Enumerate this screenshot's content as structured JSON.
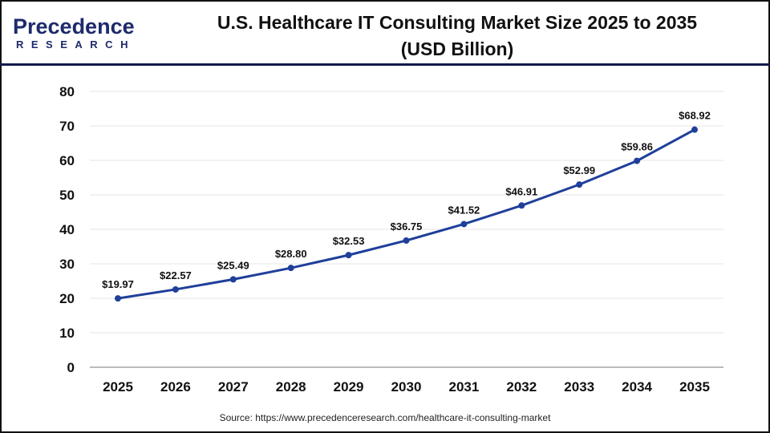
{
  "logo": {
    "line1": "Precedence",
    "line2": "RESEARCH"
  },
  "title_line1": "U.S. Healthcare IT Consulting Market Size 2025 to 2035",
  "title_line2": "(USD Billion)",
  "source": "Source: https://www.precedenceresearch.com/healthcare-it-consulting-market",
  "chart_data": {
    "type": "line",
    "categories": [
      "2025",
      "2026",
      "2027",
      "2028",
      "2029",
      "2030",
      "2031",
      "2032",
      "2033",
      "2034",
      "2035"
    ],
    "values": [
      19.97,
      22.57,
      25.49,
      28.8,
      32.53,
      36.75,
      41.52,
      46.91,
      52.99,
      59.86,
      68.92
    ],
    "data_labels": [
      "$19.97",
      "$22.57",
      "$25.49",
      "$28.80",
      "$32.53",
      "$36.75",
      "$41.52",
      "$46.91",
      "$52.99",
      "$59.86",
      "$68.92"
    ],
    "ylim": [
      0,
      80
    ],
    "yticks": [
      0,
      10,
      20,
      30,
      40,
      50,
      60,
      70,
      80
    ],
    "grid": true,
    "line_color": "#1f3f9a"
  }
}
